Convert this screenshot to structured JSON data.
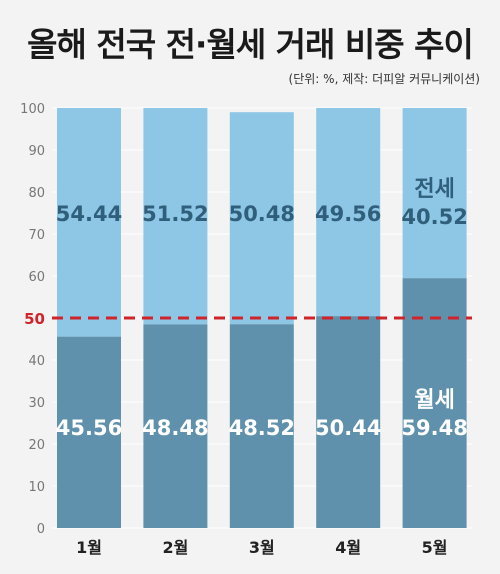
{
  "title": "올해 전국 전·월세 거래 비중 추이",
  "note": "(단위: %, 제작: 더피알 커뮤니케이션)",
  "colors": {
    "background": "#f3f3f3",
    "jeonse": "#8ec6e6",
    "wolse": "#5f91ad",
    "jeonse_text": "#2f5f7a",
    "wolse_text": "#ffffff",
    "reference_line": "#d0242a",
    "grid": "#ffffff",
    "axis_text": "#777777"
  },
  "chart_data": {
    "type": "bar",
    "stacked": true,
    "categories": [
      "1월",
      "2월",
      "3월",
      "4월",
      "5월"
    ],
    "series": [
      {
        "name": "월세",
        "values": [
          45.56,
          48.48,
          48.52,
          50.44,
          59.48
        ]
      },
      {
        "name": "전세",
        "values": [
          54.44,
          51.52,
          50.48,
          49.56,
          40.52
        ]
      }
    ],
    "ylim": [
      0,
      100
    ],
    "yticks": [
      0,
      10,
      20,
      30,
      40,
      50,
      60,
      70,
      80,
      90,
      100
    ],
    "reference_line": {
      "value": 50,
      "label": "50"
    },
    "series_labels": {
      "jeonse": "전세",
      "wolse": "월세"
    },
    "grid": true
  }
}
